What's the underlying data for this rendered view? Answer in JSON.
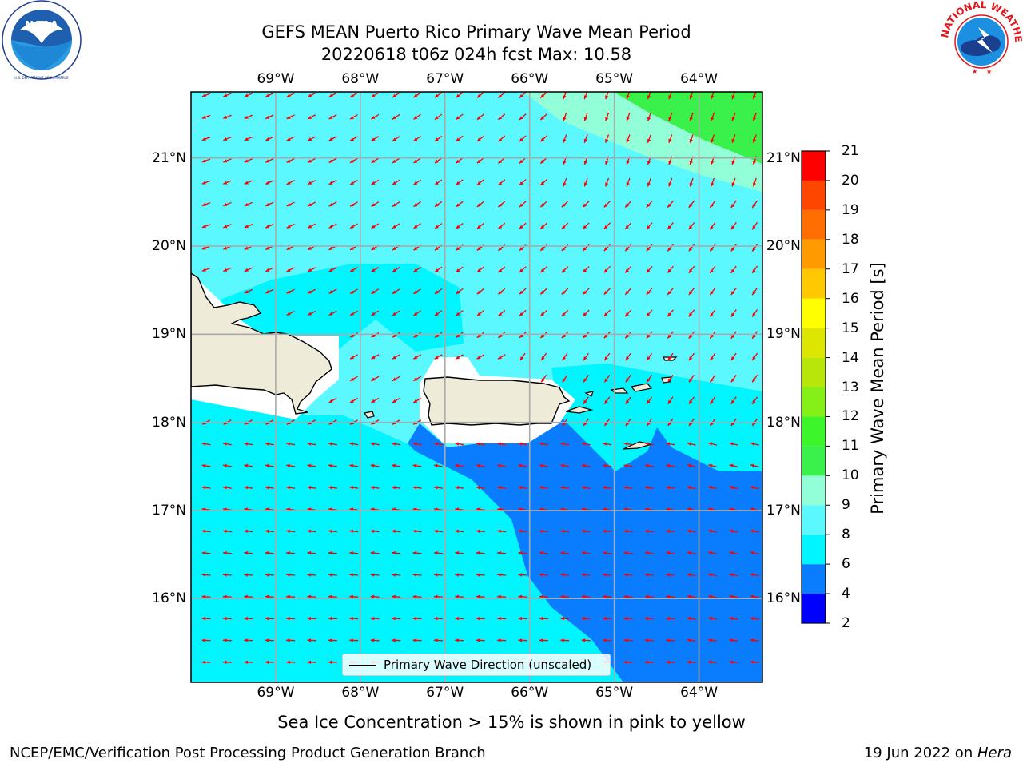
{
  "header": {
    "title_line1": "GEFS MEAN Puerto Rico Primary Wave Mean Period",
    "title_line2": "20220618 t06z 024h fcst   Max: 10.58"
  },
  "logos": {
    "left": {
      "name": "noaa-logo",
      "text": "NOAA",
      "ring_text": "NATIONAL OCEANIC AND ATMOSPHERIC ADMINISTRATION · U.S. DEPARTMENT OF COMMERCE"
    },
    "right": {
      "name": "nws-logo",
      "ring_text": "NATIONAL WEATHER SERVICE"
    }
  },
  "map": {
    "lon_ticks": [
      "69°W",
      "68°W",
      "67°W",
      "66°W",
      "65°W",
      "64°W"
    ],
    "lat_ticks": [
      "21°N",
      "20°N",
      "19°N",
      "18°N",
      "17°N",
      "16°N"
    ],
    "lon_values": [
      -69,
      -68,
      -67,
      -66,
      -65,
      -64
    ],
    "lat_values": [
      21,
      20,
      19,
      18,
      17,
      16
    ],
    "extent": {
      "lon": [
        -70.0,
        -63.25
      ],
      "lat": [
        15.05,
        21.75
      ]
    },
    "legend_label": "Primary Wave Direction (unscaled)",
    "arrow_color": "#ff0000",
    "land_color": "#efebd9",
    "grid": true
  },
  "colorbar": {
    "label": "Primary Wave Mean Period [s]",
    "ticks": [
      "2",
      "4",
      "6",
      "8",
      "9",
      "10",
      "11",
      "12",
      "13",
      "14",
      "15",
      "16",
      "17",
      "18",
      "19",
      "20",
      "21"
    ],
    "bands": [
      {
        "from": 2,
        "to": 4,
        "color": "#0000ff"
      },
      {
        "from": 4,
        "to": 6,
        "color": "#0a7dff"
      },
      {
        "from": 6,
        "to": 8,
        "color": "#00f5ff"
      },
      {
        "from": 8,
        "to": 9,
        "color": "#5cf8ff"
      },
      {
        "from": 9,
        "to": 10,
        "color": "#93ffd9"
      },
      {
        "from": 10,
        "to": 11,
        "color": "#3af04a"
      },
      {
        "from": 11,
        "to": 12,
        "color": "#3df52b"
      },
      {
        "from": 12,
        "to": 13,
        "color": "#84f018"
      },
      {
        "from": 13,
        "to": 14,
        "color": "#b8e60a"
      },
      {
        "from": 14,
        "to": 15,
        "color": "#dde600"
      },
      {
        "from": 15,
        "to": 16,
        "color": "#ffff00"
      },
      {
        "from": 16,
        "to": 17,
        "color": "#ffc800"
      },
      {
        "from": 17,
        "to": 18,
        "color": "#ff9b00"
      },
      {
        "from": 18,
        "to": 19,
        "color": "#ff6e00"
      },
      {
        "from": 19,
        "to": 20,
        "color": "#ff4600"
      },
      {
        "from": 20,
        "to": 21,
        "color": "#ff0000"
      }
    ]
  },
  "caption": "Sea Ice Concentration > 15% is shown in pink to yellow",
  "footer": {
    "left": "NCEP/EMC/Verification Post Processing Product Generation Branch",
    "right_prefix": "19 Jun 2022 on ",
    "right_italic": "Hera"
  }
}
